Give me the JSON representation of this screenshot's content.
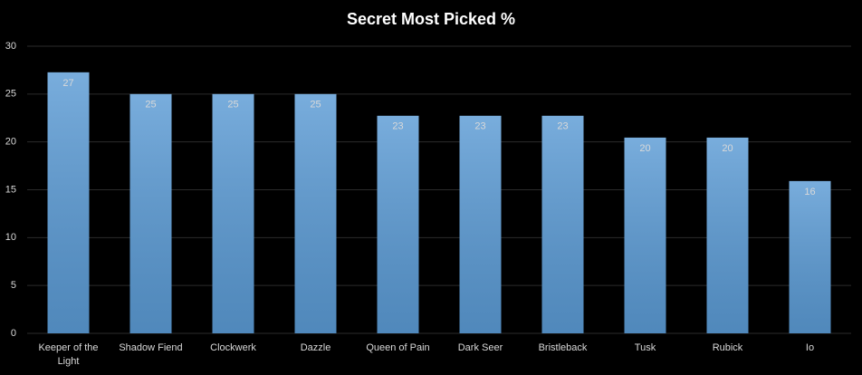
{
  "chart_data": {
    "type": "bar",
    "title": "Secret Most Picked %",
    "categories": [
      "Keeper of the Light",
      "Shadow Fiend",
      "Clockwerk",
      "Dazzle",
      "Queen of Pain",
      "Dark Seer",
      "Bristleback",
      "Tusk",
      "Rubick",
      "Io"
    ],
    "values": [
      27.27,
      25,
      25,
      25,
      22.73,
      22.73,
      22.73,
      20.45,
      20.45,
      15.91
    ],
    "value_labels": [
      "27",
      "25",
      "25",
      "25",
      "23",
      "23",
      "23",
      "20",
      "20",
      "16"
    ],
    "color": "#5b9bd5",
    "ylim": [
      0,
      30
    ],
    "yticks": [
      0,
      5,
      10,
      15,
      20,
      25,
      30
    ],
    "grid": true
  }
}
